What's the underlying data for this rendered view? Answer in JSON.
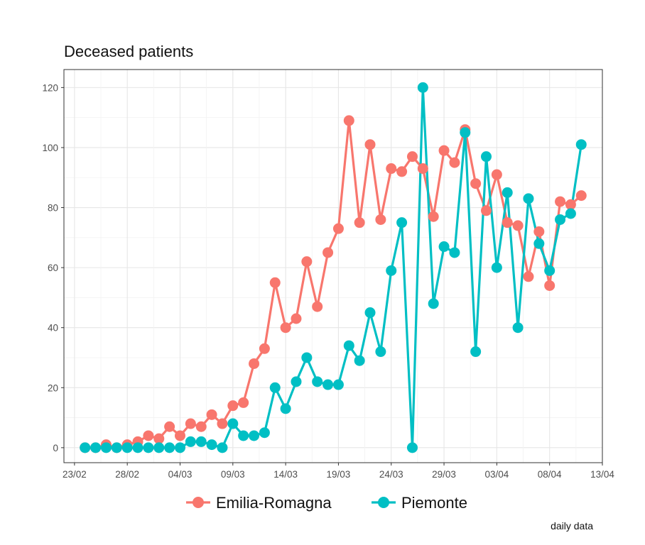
{
  "chart_data": {
    "type": "line",
    "title": "Deceased patients",
    "caption": "daily data",
    "xlabel": "",
    "ylabel": "",
    "x_tick_labels": [
      "23/02",
      "28/02",
      "04/03",
      "09/03",
      "14/03",
      "19/03",
      "24/03",
      "29/03",
      "03/04",
      "08/04",
      "13/04"
    ],
    "y_tick_labels": [
      "0",
      "20",
      "40",
      "60",
      "80",
      "100",
      "120"
    ],
    "ylim": [
      -5,
      126
    ],
    "xlim": [
      "2020-02-22",
      "2020-04-13"
    ],
    "grid": true,
    "legend_position": "bottom",
    "series": [
      {
        "name": "Emilia-Romagna",
        "color": "#F8766D",
        "values": [
          0,
          0,
          1,
          0,
          1,
          2,
          4,
          3,
          7,
          4,
          8,
          7,
          11,
          8,
          14,
          15,
          28,
          33,
          55,
          40,
          43,
          62,
          47,
          65,
          73,
          109,
          75,
          101,
          76,
          93,
          92,
          97,
          93,
          77,
          99,
          95,
          106,
          88,
          79,
          91,
          75,
          74,
          57,
          72,
          54,
          82,
          81,
          84
        ]
      },
      {
        "name": "Piemonte",
        "color": "#00BFC4",
        "values": [
          0,
          0,
          0,
          0,
          0,
          0,
          0,
          0,
          0,
          0,
          2,
          2,
          1,
          0,
          8,
          4,
          4,
          5,
          20,
          13,
          22,
          30,
          22,
          21,
          21,
          34,
          29,
          45,
          32,
          59,
          75,
          0,
          120,
          48,
          67,
          65,
          105,
          32,
          97,
          60,
          85,
          40,
          83,
          68,
          59,
          76,
          78,
          101
        ]
      }
    ],
    "x_start_date": "2020-02-24"
  }
}
